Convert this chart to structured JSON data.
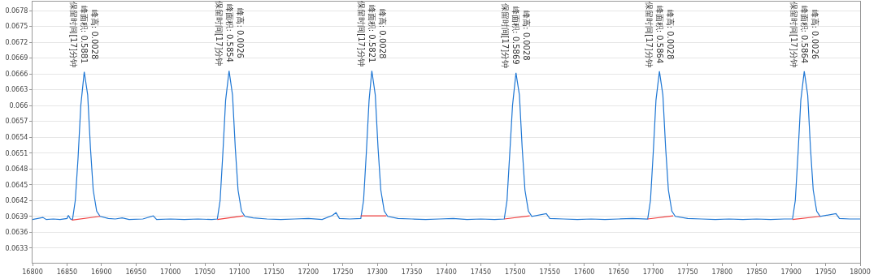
{
  "chart_data": {
    "type": "line",
    "xlim": [
      16800,
      18000
    ],
    "ylim": [
      0.06302,
      0.06797
    ],
    "xticks": [
      16800,
      16850,
      16900,
      16950,
      17000,
      17050,
      17100,
      17150,
      17200,
      17250,
      17300,
      17350,
      17400,
      17450,
      17500,
      17550,
      17600,
      17650,
      17700,
      17750,
      17800,
      17850,
      17900,
      17950,
      18000
    ],
    "yticks": [
      0.0633,
      0.0636,
      0.0639,
      0.0642,
      0.0645,
      0.0648,
      0.0651,
      0.0654,
      0.0657,
      {
        "value": 0.066,
        "label": "0.066"
      },
      0.0663,
      0.0666,
      0.0669,
      0.0672,
      0.0675,
      0.0678
    ],
    "grid": "y",
    "marker": "none",
    "line_style": "solid",
    "series": [
      {
        "color": "#1f77d4",
        "x": [
          16800,
          16815,
          16820,
          16830,
          16840,
          16850,
          16852,
          16855,
          16858,
          16862,
          16866,
          16870,
          16875,
          16880,
          16884,
          16888,
          16893,
          16898,
          16910,
          16920,
          16930,
          16940,
          16960,
          16975,
          16980,
          17000,
          17020,
          17040,
          17060,
          17068,
          17072,
          17076,
          17080,
          17085,
          17090,
          17094,
          17098,
          17103,
          17108,
          17120,
          17140,
          17160,
          17180,
          17200,
          17220,
          17235,
          17240,
          17245,
          17260,
          17276,
          17280,
          17284,
          17288,
          17292,
          17297,
          17301,
          17305,
          17310,
          17315,
          17330,
          17350,
          17370,
          17390,
          17410,
          17430,
          17450,
          17470,
          17484,
          17488,
          17492,
          17496,
          17501,
          17506,
          17510,
          17514,
          17519,
          17524,
          17545,
          17550,
          17570,
          17590,
          17610,
          17630,
          17650,
          17670,
          17692,
          17696,
          17700,
          17704,
          17709,
          17714,
          17718,
          17722,
          17727,
          17732,
          17750,
          17770,
          17790,
          17810,
          17830,
          17850,
          17870,
          17890,
          17902,
          17906,
          17910,
          17914,
          17919,
          17924,
          17928,
          17932,
          17937,
          17942,
          17965,
          17970,
          17985,
          18000
        ],
        "values": [
          0.06384,
          0.06388,
          0.06384,
          0.06385,
          0.06384,
          0.06386,
          0.06392,
          0.06385,
          0.06384,
          0.0642,
          0.065,
          0.066,
          0.06664,
          0.0662,
          0.0652,
          0.0644,
          0.064,
          0.0639,
          0.06386,
          0.06385,
          0.06387,
          0.06384,
          0.06385,
          0.06391,
          0.06384,
          0.06385,
          0.06384,
          0.06385,
          0.06384,
          0.06385,
          0.0642,
          0.0651,
          0.0661,
          0.06666,
          0.0662,
          0.0652,
          0.0644,
          0.064,
          0.0639,
          0.06387,
          0.06385,
          0.06384,
          0.06385,
          0.06386,
          0.06384,
          0.06392,
          0.06397,
          0.06386,
          0.06385,
          0.06386,
          0.0642,
          0.0651,
          0.0661,
          0.06666,
          0.0662,
          0.0652,
          0.0644,
          0.064,
          0.0639,
          0.06386,
          0.06385,
          0.06384,
          0.06385,
          0.06386,
          0.06384,
          0.06385,
          0.06384,
          0.06385,
          0.0642,
          0.0651,
          0.066,
          0.06662,
          0.0662,
          0.0652,
          0.0644,
          0.064,
          0.0639,
          0.06395,
          0.06386,
          0.06385,
          0.06384,
          0.06385,
          0.06384,
          0.06385,
          0.06386,
          0.06385,
          0.0642,
          0.0651,
          0.0661,
          0.06665,
          0.0662,
          0.0652,
          0.0644,
          0.064,
          0.0639,
          0.06386,
          0.06385,
          0.06384,
          0.06385,
          0.06384,
          0.06385,
          0.06384,
          0.06385,
          0.06385,
          0.0642,
          0.0651,
          0.0661,
          0.06665,
          0.0662,
          0.0652,
          0.0644,
          0.064,
          0.0639,
          0.06395,
          0.06386,
          0.06385,
          0.06385
        ]
      },
      {
        "color": "#f04040",
        "x": [
          16857,
          16898,
          16899,
          17068,
          17106,
          17107,
          17276,
          17313,
          17314,
          17484,
          17521,
          17522,
          17692,
          17729,
          17730,
          17902,
          17942
        ],
        "values": [
          0.06383,
          0.0639,
          null,
          0.06384,
          0.06391,
          null,
          0.06391,
          0.06391,
          null,
          0.06385,
          0.06391,
          null,
          0.06385,
          0.06391,
          null,
          0.06384,
          0.0639
        ]
      }
    ],
    "annotations": [
      {
        "text": "峰高: 0.0028\n峰面积: 0.5881\n保留时间[17]分钟",
        "x": 16875,
        "y": 0.06664
      },
      {
        "text": "峰高: 0.0026\n峰面积: 0.5854\n保留时间[17]分钟",
        "x": 17085,
        "y": 0.06666
      },
      {
        "text": "峰高: 0.0028\n峰面积: 0.5821\n保留时间[17]分钟",
        "x": 17292,
        "y": 0.06666
      },
      {
        "text": "峰高: 0.0028\n峰面积: 0.5869\n保留时间[17]分钟",
        "x": 17501,
        "y": 0.06662
      },
      {
        "text": "峰高: 0.0028\n峰面积: 0.5864\n保留时间[17]分钟",
        "x": 17709,
        "y": 0.06665
      },
      {
        "text": "峰高: 0.0026\n峰面积: 0.5864\n保留时间[17]分钟",
        "x": 17919,
        "y": 0.06665
      }
    ]
  }
}
